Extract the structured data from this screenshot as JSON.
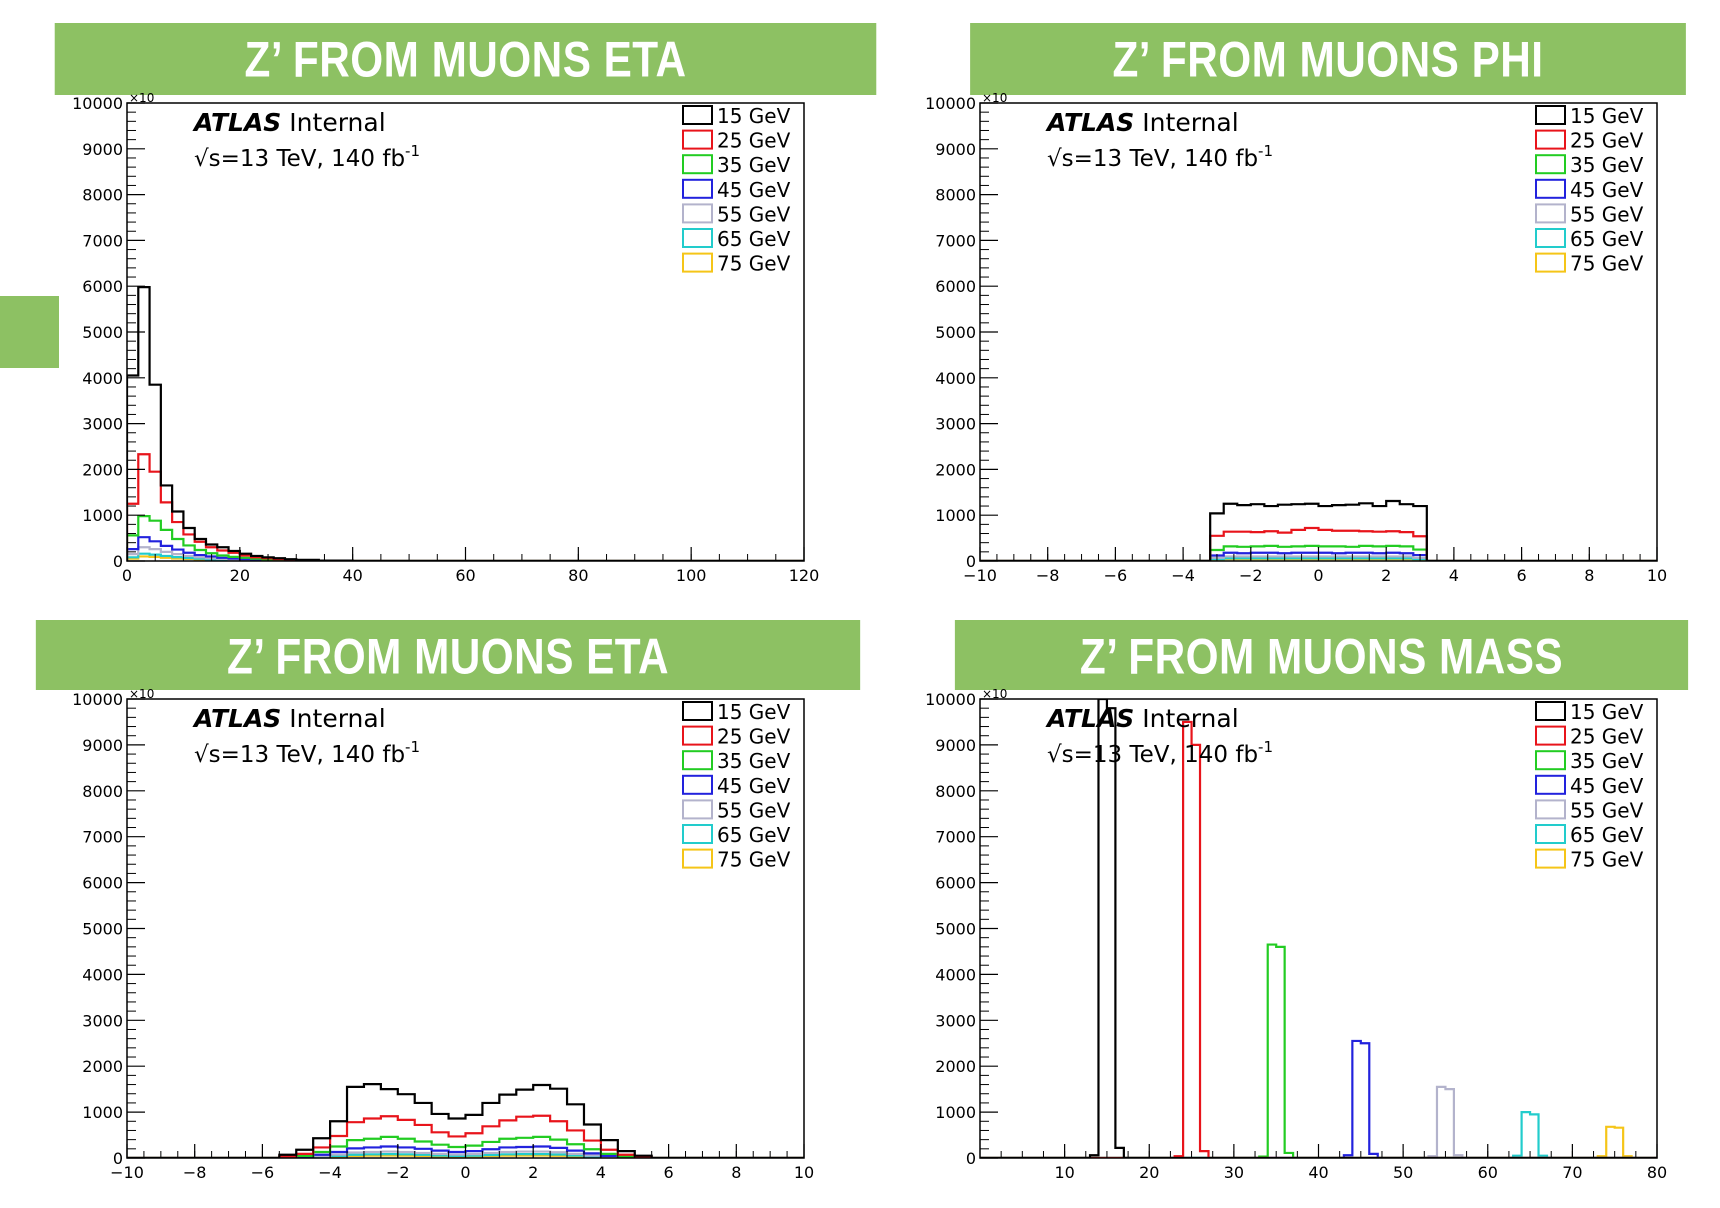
{
  "banners": [
    "Z’ FROM MUONS ETA",
    "Z’ FROM MUONS PHI",
    "Z’  FROM MUONS ETA",
    "Z’  FROM MUONS MASS"
  ],
  "colors": {
    "banner": "#8dc163",
    "series": [
      "#000000",
      "#e8141b",
      "#22cc22",
      "#2222dd",
      "#b3b3cc",
      "#22cccc",
      "#f5c518"
    ]
  },
  "annotations": {
    "experiment": "ATLAS",
    "status": "Internal",
    "energy_prefix": "√s=13 TeV, 140 fb",
    "energy_sup": "-1",
    "y_exponent": "×10"
  },
  "legend": [
    "15 GeV",
    "25 GeV",
    "35 GeV",
    "45 GeV",
    "55 GeV",
    "65 GeV",
    "75 GeV"
  ],
  "chart_data": [
    {
      "type": "histogram-step",
      "banner": "Z’ FROM MUONS ETA",
      "xlim": [
        0,
        120
      ],
      "ylim": [
        0,
        10000
      ],
      "xticks": [
        0,
        20,
        40,
        60,
        80,
        100,
        120
      ],
      "yticks": [
        0,
        1000,
        2000,
        3000,
        4000,
        5000,
        6000,
        7000,
        8000,
        9000,
        10000
      ],
      "legend_position": "top-right",
      "bin_edges": [
        0,
        2,
        4,
        6,
        8,
        10,
        12,
        14,
        16,
        18,
        20,
        22,
        24,
        26,
        28,
        30,
        34,
        40,
        120
      ],
      "series": [
        {
          "name": "15 GeV",
          "values": [
            4050,
            5980,
            3850,
            1650,
            1080,
            720,
            480,
            360,
            300,
            220,
            160,
            110,
            80,
            60,
            40,
            25,
            10,
            0
          ]
        },
        {
          "name": "25 GeV",
          "values": [
            1250,
            2330,
            1950,
            1280,
            850,
            580,
            420,
            300,
            230,
            180,
            120,
            80,
            60,
            40,
            25,
            15,
            5,
            0
          ]
        },
        {
          "name": "35 GeV",
          "values": [
            560,
            980,
            880,
            680,
            480,
            340,
            240,
            170,
            120,
            90,
            70,
            50,
            35,
            25,
            15,
            10,
            5,
            0
          ]
        },
        {
          "name": "45 GeV",
          "values": [
            260,
            520,
            430,
            330,
            250,
            180,
            130,
            100,
            70,
            55,
            40,
            30,
            20,
            15,
            10,
            5,
            2,
            0
          ]
        },
        {
          "name": "55 GeV",
          "values": [
            150,
            300,
            260,
            200,
            150,
            110,
            80,
            60,
            45,
            35,
            25,
            20,
            15,
            10,
            5,
            3,
            1,
            0
          ]
        },
        {
          "name": "65 GeV",
          "values": [
            80,
            160,
            140,
            110,
            85,
            65,
            50,
            35,
            25,
            20,
            15,
            10,
            8,
            5,
            3,
            2,
            1,
            0
          ]
        },
        {
          "name": "75 GeV",
          "values": [
            50,
            100,
            90,
            70,
            55,
            45,
            35,
            25,
            18,
            14,
            10,
            8,
            5,
            3,
            2,
            1,
            1,
            0
          ]
        }
      ]
    },
    {
      "type": "histogram-step",
      "banner": "Z’ FROM MUONS PHI",
      "xlim": [
        -10,
        10
      ],
      "ylim": [
        0,
        10000
      ],
      "xticks": [
        -10,
        -8,
        -6,
        -4,
        -2,
        0,
        2,
        4,
        6,
        8,
        10
      ],
      "yticks": [
        0,
        1000,
        2000,
        3000,
        4000,
        5000,
        6000,
        7000,
        8000,
        9000,
        10000
      ],
      "legend_position": "top-right",
      "bin_edges": [
        -3.2,
        -2.8,
        -2.4,
        -2.0,
        -1.6,
        -1.2,
        -0.8,
        -0.4,
        0,
        0.4,
        0.8,
        1.2,
        1.6,
        2.0,
        2.4,
        2.8,
        3.2
      ],
      "series": [
        {
          "name": "15 GeV",
          "values": [
            1040,
            1250,
            1220,
            1240,
            1200,
            1230,
            1240,
            1250,
            1200,
            1220,
            1230,
            1260,
            1200,
            1310,
            1240,
            1200
          ]
        },
        {
          "name": "25 GeV",
          "values": [
            550,
            640,
            640,
            630,
            650,
            620,
            680,
            720,
            680,
            660,
            660,
            650,
            640,
            650,
            630,
            540
          ]
        },
        {
          "name": "35 GeV",
          "values": [
            240,
            320,
            310,
            320,
            330,
            310,
            320,
            330,
            320,
            320,
            310,
            330,
            320,
            330,
            320,
            250
          ]
        },
        {
          "name": "45 GeV",
          "values": [
            120,
            180,
            170,
            180,
            180,
            170,
            180,
            180,
            180,
            170,
            180,
            180,
            170,
            180,
            170,
            130
          ]
        },
        {
          "name": "55 GeV",
          "values": [
            70,
            100,
            100,
            100,
            100,
            100,
            100,
            100,
            100,
            100,
            100,
            100,
            100,
            100,
            100,
            70
          ]
        },
        {
          "name": "65 GeV",
          "values": [
            40,
            60,
            60,
            60,
            60,
            60,
            60,
            60,
            60,
            60,
            60,
            60,
            60,
            60,
            60,
            40
          ]
        },
        {
          "name": "75 GeV",
          "values": [
            25,
            40,
            40,
            40,
            40,
            40,
            40,
            40,
            40,
            40,
            40,
            40,
            40,
            40,
            40,
            25
          ]
        }
      ]
    },
    {
      "type": "histogram-step",
      "banner": "Z’  FROM MUONS ETA",
      "xlim": [
        -10,
        10
      ],
      "ylim": [
        0,
        10000
      ],
      "xticks": [
        -10,
        -8,
        -6,
        -4,
        -2,
        0,
        2,
        4,
        6,
        8,
        10
      ],
      "yticks": [
        0,
        1000,
        2000,
        3000,
        4000,
        5000,
        6000,
        7000,
        8000,
        9000,
        10000
      ],
      "legend_position": "top-right",
      "bin_edges": [
        -5.5,
        -5.0,
        -4.5,
        -4.0,
        -3.5,
        -3.0,
        -2.5,
        -2.0,
        -1.5,
        -1.0,
        -0.5,
        0,
        0.5,
        1.0,
        1.5,
        2.0,
        2.5,
        3.0,
        3.5,
        4.0,
        4.5,
        5.0,
        5.5
      ],
      "series": [
        {
          "name": "15 GeV",
          "values": [
            70,
            180,
            430,
            800,
            1550,
            1610,
            1500,
            1390,
            1200,
            960,
            860,
            940,
            1200,
            1380,
            1490,
            1590,
            1510,
            1170,
            730,
            390,
            150,
            50
          ]
        },
        {
          "name": "25 GeV",
          "values": [
            35,
            90,
            230,
            480,
            780,
            860,
            910,
            830,
            720,
            560,
            470,
            540,
            690,
            820,
            900,
            920,
            800,
            600,
            380,
            180,
            70,
            25
          ]
        },
        {
          "name": "35 GeV",
          "values": [
            15,
            45,
            130,
            250,
            390,
            420,
            460,
            420,
            360,
            290,
            240,
            270,
            350,
            420,
            440,
            460,
            400,
            300,
            190,
            90,
            35,
            10
          ]
        },
        {
          "name": "45 GeV",
          "values": [
            8,
            25,
            70,
            130,
            210,
            230,
            250,
            230,
            200,
            160,
            130,
            150,
            190,
            230,
            240,
            250,
            220,
            160,
            100,
            45,
            18,
            5
          ]
        },
        {
          "name": "55 GeV",
          "values": [
            5,
            15,
            40,
            75,
            120,
            130,
            140,
            130,
            110,
            90,
            75,
            85,
            110,
            130,
            140,
            140,
            125,
            90,
            55,
            25,
            10,
            3
          ]
        },
        {
          "name": "65 GeV",
          "values": [
            3,
            10,
            25,
            45,
            70,
            80,
            85,
            80,
            70,
            55,
            45,
            50,
            65,
            80,
            85,
            85,
            75,
            55,
            35,
            15,
            6,
            2
          ]
        },
        {
          "name": "75 GeV",
          "values": [
            2,
            6,
            15,
            28,
            45,
            50,
            55,
            50,
            45,
            35,
            28,
            32,
            42,
            50,
            55,
            55,
            48,
            35,
            22,
            10,
            4,
            1
          ]
        }
      ]
    },
    {
      "type": "histogram-step",
      "banner": "Z’  FROM MUONS MASS",
      "xlim": [
        0,
        80
      ],
      "ylim": [
        0,
        10000
      ],
      "xticks": [
        10,
        20,
        30,
        40,
        50,
        60,
        70,
        80
      ],
      "yticks": [
        0,
        1000,
        2000,
        3000,
        4000,
        5000,
        6000,
        7000,
        8000,
        9000,
        10000
      ],
      "legend_position": "top-right",
      "series": [
        {
          "name": "15 GeV",
          "bin_edges": [
            13,
            14,
            15,
            16,
            17
          ],
          "values": [
            60,
            10000,
            9800,
            220
          ]
        },
        {
          "name": "25 GeV",
          "bin_edges": [
            23,
            24,
            25,
            26,
            27
          ],
          "values": [
            40,
            9500,
            9000,
            150
          ]
        },
        {
          "name": "35 GeV",
          "bin_edges": [
            33,
            34,
            35,
            36,
            37
          ],
          "values": [
            30,
            4650,
            4600,
            110
          ]
        },
        {
          "name": "45 GeV",
          "bin_edges": [
            43,
            44,
            45,
            46,
            47
          ],
          "values": [
            60,
            2550,
            2500,
            90
          ]
        },
        {
          "name": "55 GeV",
          "bin_edges": [
            53,
            54,
            55,
            56,
            57
          ],
          "values": [
            40,
            1550,
            1500,
            60
          ]
        },
        {
          "name": "65 GeV",
          "bin_edges": [
            63,
            64,
            65,
            66,
            67
          ],
          "values": [
            50,
            1000,
            950,
            50
          ]
        },
        {
          "name": "75 GeV",
          "bin_edges": [
            73,
            74,
            75,
            76,
            77
          ],
          "values": [
            40,
            680,
            660,
            40
          ]
        }
      ]
    }
  ]
}
